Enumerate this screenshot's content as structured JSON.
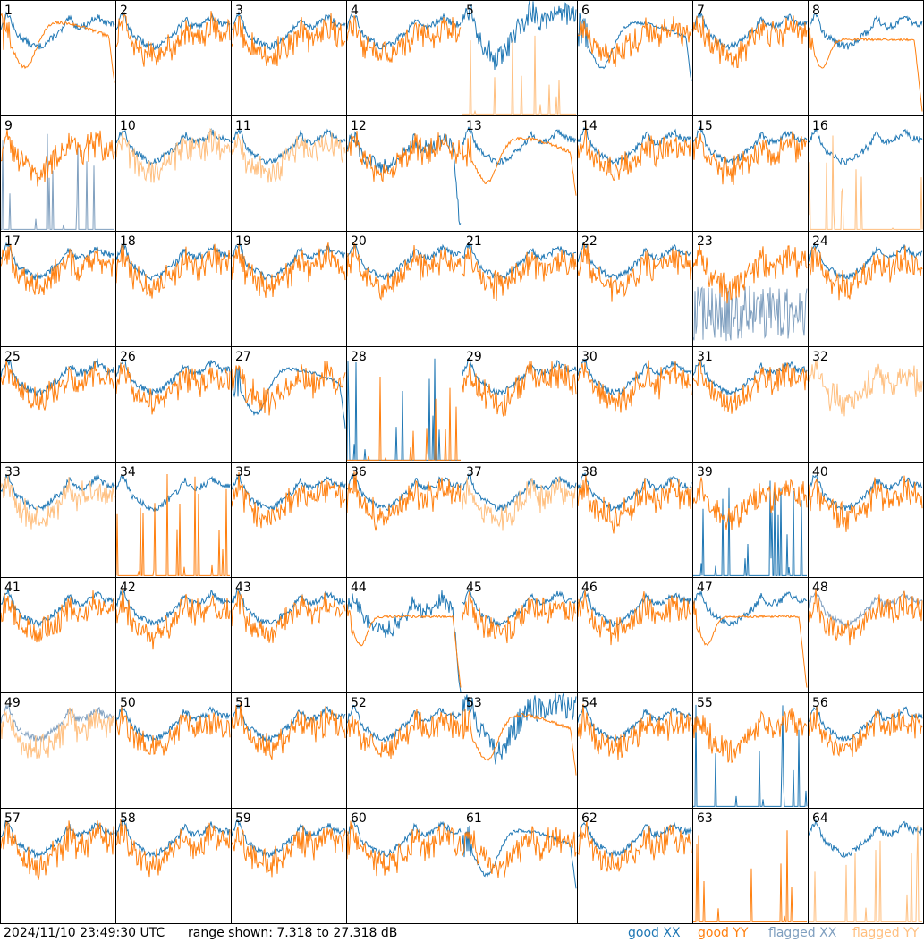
{
  "footer": {
    "timestamp": "2024/11/10 23:49:30 UTC",
    "range": "range shown: 7.318 to 27.318 dB",
    "legend": {
      "good_xx": "good XX",
      "good_yy": "good YY",
      "flagged_xx": "flagged XX",
      "flagged_yy": "flagged YY"
    }
  },
  "colors": {
    "good_xx": "#1f77b4",
    "good_yy": "#ff7f0e",
    "flagged_xx": "#7f9fbf",
    "flagged_yy": "#ffbf7f",
    "border": "#000000"
  },
  "chart_data": {
    "type": "line",
    "title": "",
    "layout": "8x8 small multiples",
    "xlabel": "",
    "ylabel": "",
    "ylim": [
      7.318,
      27.318
    ],
    "units": "dB",
    "panels": [
      {
        "label": "1",
        "xx": "good",
        "yy": "good",
        "xx_shape": "normal",
        "yy_shape": "dip"
      },
      {
        "label": "2",
        "xx": "good",
        "yy": "good",
        "xx_shape": "normal",
        "yy_shape": "normal"
      },
      {
        "label": "3",
        "xx": "good",
        "yy": "good",
        "xx_shape": "normal",
        "yy_shape": "normal"
      },
      {
        "label": "4",
        "xx": "good",
        "yy": "good",
        "xx_shape": "normal",
        "yy_shape": "normal"
      },
      {
        "label": "5",
        "xx": "good",
        "yy": "flagged",
        "xx_shape": "noisy",
        "yy_shape": "spikes"
      },
      {
        "label": "6",
        "xx": "good",
        "yy": "good",
        "xx_shape": "dip",
        "yy_shape": "normal"
      },
      {
        "label": "7",
        "xx": "good",
        "yy": "good",
        "xx_shape": "normal",
        "yy_shape": "normal"
      },
      {
        "label": "8",
        "xx": "good",
        "yy": "good",
        "xx_shape": "normal",
        "yy_shape": "flat"
      },
      {
        "label": "9",
        "xx": "flagged",
        "yy": "good",
        "xx_shape": "spikes",
        "yy_shape": "normal"
      },
      {
        "label": "10",
        "xx": "good",
        "yy": "flagged",
        "xx_shape": "normal",
        "yy_shape": "normal"
      },
      {
        "label": "11",
        "xx": "good",
        "yy": "flagged",
        "xx_shape": "normal",
        "yy_shape": "normal"
      },
      {
        "label": "12",
        "xx": "good",
        "yy": "good",
        "xx_shape": "dip_end",
        "yy_shape": "normal"
      },
      {
        "label": "13",
        "xx": "good",
        "yy": "good",
        "xx_shape": "normal",
        "yy_shape": "dip"
      },
      {
        "label": "14",
        "xx": "good",
        "yy": "good",
        "xx_shape": "normal",
        "yy_shape": "normal"
      },
      {
        "label": "15",
        "xx": "good",
        "yy": "good",
        "xx_shape": "normal",
        "yy_shape": "normal"
      },
      {
        "label": "16",
        "xx": "good",
        "yy": "flagged",
        "xx_shape": "normal",
        "yy_shape": "spikes"
      },
      {
        "label": "17",
        "xx": "good",
        "yy": "good",
        "xx_shape": "normal",
        "yy_shape": "normal"
      },
      {
        "label": "18",
        "xx": "good",
        "yy": "good",
        "xx_shape": "normal",
        "yy_shape": "normal"
      },
      {
        "label": "19",
        "xx": "good",
        "yy": "good",
        "xx_shape": "normal",
        "yy_shape": "normal"
      },
      {
        "label": "20",
        "xx": "good",
        "yy": "good",
        "xx_shape": "normal",
        "yy_shape": "normal"
      },
      {
        "label": "21",
        "xx": "good",
        "yy": "good",
        "xx_shape": "normal",
        "yy_shape": "normal"
      },
      {
        "label": "22",
        "xx": "good",
        "yy": "good",
        "xx_shape": "normal",
        "yy_shape": "normal"
      },
      {
        "label": "23",
        "xx": "flagged",
        "yy": "good",
        "xx_shape": "noisy_low",
        "yy_shape": "normal"
      },
      {
        "label": "24",
        "xx": "good",
        "yy": "good",
        "xx_shape": "normal",
        "yy_shape": "normal"
      },
      {
        "label": "25",
        "xx": "good",
        "yy": "good",
        "xx_shape": "spike_one",
        "yy_shape": "normal"
      },
      {
        "label": "26",
        "xx": "good",
        "yy": "good",
        "xx_shape": "normal",
        "yy_shape": "normal"
      },
      {
        "label": "27",
        "xx": "good",
        "yy": "good",
        "xx_shape": "dip",
        "yy_shape": "normal"
      },
      {
        "label": "28",
        "xx": "good",
        "yy": "good",
        "xx_shape": "spikes",
        "yy_shape": "spikes"
      },
      {
        "label": "29",
        "xx": "good",
        "yy": "good",
        "xx_shape": "normal",
        "yy_shape": "normal"
      },
      {
        "label": "30",
        "xx": "good",
        "yy": "good",
        "xx_shape": "normal",
        "yy_shape": "normal"
      },
      {
        "label": "31",
        "xx": "good",
        "yy": "good",
        "xx_shape": "normal",
        "yy_shape": "normal"
      },
      {
        "label": "32",
        "xx": "good",
        "yy": "flagged",
        "xx_shape": "none",
        "yy_shape": "normal"
      },
      {
        "label": "33",
        "xx": "good",
        "yy": "flagged",
        "xx_shape": "normal",
        "yy_shape": "normal"
      },
      {
        "label": "34",
        "xx": "good",
        "yy": "good",
        "xx_shape": "normal",
        "yy_shape": "spikes"
      },
      {
        "label": "35",
        "xx": "good",
        "yy": "good",
        "xx_shape": "normal",
        "yy_shape": "normal"
      },
      {
        "label": "36",
        "xx": "good",
        "yy": "good",
        "xx_shape": "normal",
        "yy_shape": "normal"
      },
      {
        "label": "37",
        "xx": "good",
        "yy": "flagged",
        "xx_shape": "normal",
        "yy_shape": "normal"
      },
      {
        "label": "38",
        "xx": "good",
        "yy": "good",
        "xx_shape": "normal",
        "yy_shape": "normal"
      },
      {
        "label": "39",
        "xx": "good",
        "yy": "good",
        "xx_shape": "spikes",
        "yy_shape": "normal"
      },
      {
        "label": "40",
        "xx": "good",
        "yy": "good",
        "xx_shape": "normal",
        "yy_shape": "normal"
      },
      {
        "label": "41",
        "xx": "good",
        "yy": "good",
        "xx_shape": "normal",
        "yy_shape": "normal"
      },
      {
        "label": "42",
        "xx": "good",
        "yy": "good",
        "xx_shape": "normal",
        "yy_shape": "normal"
      },
      {
        "label": "43",
        "xx": "good",
        "yy": "good",
        "xx_shape": "normal",
        "yy_shape": "normal"
      },
      {
        "label": "44",
        "xx": "good",
        "yy": "good",
        "xx_shape": "dip_end",
        "yy_shape": "flat"
      },
      {
        "label": "45",
        "xx": "good",
        "yy": "good",
        "xx_shape": "normal",
        "yy_shape": "normal"
      },
      {
        "label": "46",
        "xx": "good",
        "yy": "good",
        "xx_shape": "normal",
        "yy_shape": "normal"
      },
      {
        "label": "47",
        "xx": "good",
        "yy": "good",
        "xx_shape": "normal",
        "yy_shape": "flat"
      },
      {
        "label": "48",
        "xx": "flagged",
        "yy": "good",
        "xx_shape": "normal",
        "yy_shape": "normal"
      },
      {
        "label": "49",
        "xx": "flagged",
        "yy": "flagged",
        "xx_shape": "normal",
        "yy_shape": "normal"
      },
      {
        "label": "50",
        "xx": "good",
        "yy": "good",
        "xx_shape": "normal",
        "yy_shape": "normal"
      },
      {
        "label": "51",
        "xx": "good",
        "yy": "good",
        "xx_shape": "normal",
        "yy_shape": "normal"
      },
      {
        "label": "52",
        "xx": "good",
        "yy": "good",
        "xx_shape": "normal",
        "yy_shape": "normal"
      },
      {
        "label": "53",
        "xx": "good",
        "yy": "good",
        "xx_shape": "noisy",
        "yy_shape": "dip"
      },
      {
        "label": "54",
        "xx": "good",
        "yy": "good",
        "xx_shape": "normal",
        "yy_shape": "normal"
      },
      {
        "label": "55",
        "xx": "good",
        "yy": "good",
        "xx_shape": "spikes",
        "yy_shape": "normal"
      },
      {
        "label": "56",
        "xx": "good",
        "yy": "good",
        "xx_shape": "normal",
        "yy_shape": "normal"
      },
      {
        "label": "57",
        "xx": "good",
        "yy": "good",
        "xx_shape": "normal",
        "yy_shape": "normal"
      },
      {
        "label": "58",
        "xx": "good",
        "yy": "good",
        "xx_shape": "normal",
        "yy_shape": "normal"
      },
      {
        "label": "59",
        "xx": "good",
        "yy": "good",
        "xx_shape": "normal",
        "yy_shape": "normal"
      },
      {
        "label": "60",
        "xx": "good",
        "yy": "good",
        "xx_shape": "normal",
        "yy_shape": "normal"
      },
      {
        "label": "61",
        "xx": "good",
        "yy": "good",
        "xx_shape": "dip",
        "yy_shape": "normal"
      },
      {
        "label": "62",
        "xx": "good",
        "yy": "good",
        "xx_shape": "normal",
        "yy_shape": "normal"
      },
      {
        "label": "63",
        "xx": "good",
        "yy": "good",
        "xx_shape": "none",
        "yy_shape": "spikes"
      },
      {
        "label": "64",
        "xx": "good",
        "yy": "flagged",
        "xx_shape": "normal",
        "yy_shape": "spikes"
      }
    ]
  }
}
